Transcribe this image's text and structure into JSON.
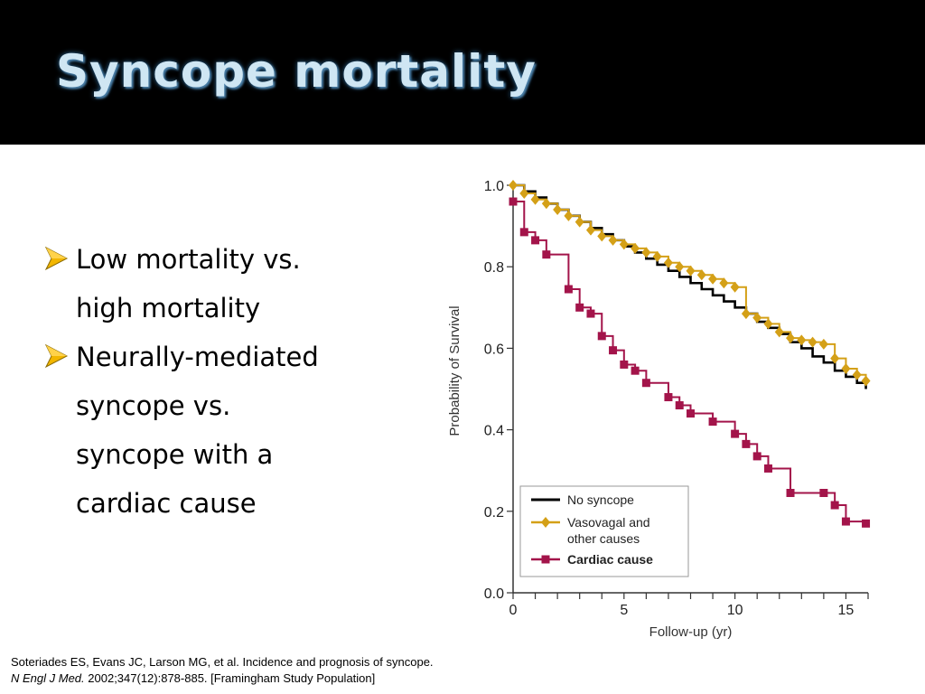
{
  "slide": {
    "title": "Syncope mortality",
    "bullets": [
      "Low mortality vs.\nhigh mortality",
      "Neurally-mediated\nsyncope vs.\nsyncope with a\ncardiac cause"
    ],
    "citation_line1": "Soteriades ES, Evans JC, Larson MG, et al. Incidence and prognosis of syncope.",
    "citation_journal": "N Engl J Med.",
    "citation_line2_rest": " 2002;347(12):878-885. [Framingham Study Population]"
  },
  "colors": {
    "title_bar": "#000000",
    "title_text": "#cfe6f3",
    "bullet_arrow": "#f2b600",
    "no_syncope": "#000000",
    "vasovagal": "#d4a017",
    "cardiac": "#a3144a"
  },
  "chart_data": {
    "type": "line",
    "step": true,
    "xlabel": "Follow-up (yr)",
    "ylabel": "Probability of Survival",
    "xlim": [
      0,
      16
    ],
    "ylim": [
      0,
      1.0
    ],
    "xticks": [
      0,
      5,
      10,
      15
    ],
    "yticks": [
      "0.0",
      "0.2",
      "0.4",
      "0.6",
      "0.8",
      "1.0"
    ],
    "grid": false,
    "legend_position": "bottom-left",
    "series": [
      {
        "name": "No syncope",
        "color": "#000000",
        "marker": "none",
        "x": [
          0,
          0.5,
          1,
          1.5,
          2,
          2.5,
          3,
          3.5,
          4,
          4.5,
          5,
          5.5,
          6,
          6.5,
          7,
          7.5,
          8,
          8.5,
          9,
          9.5,
          10,
          10.5,
          11,
          11.5,
          12,
          12.5,
          13,
          13.5,
          14,
          14.5,
          15,
          15.5,
          15.9
        ],
        "y": [
          1.0,
          0.985,
          0.97,
          0.955,
          0.94,
          0.925,
          0.91,
          0.895,
          0.88,
          0.865,
          0.85,
          0.835,
          0.82,
          0.805,
          0.79,
          0.775,
          0.76,
          0.745,
          0.73,
          0.715,
          0.7,
          0.685,
          0.665,
          0.65,
          0.635,
          0.615,
          0.6,
          0.58,
          0.565,
          0.545,
          0.53,
          0.515,
          0.5
        ]
      },
      {
        "name": "Vasovagal and other causes",
        "color": "#d4a017",
        "marker": "diamond",
        "x": [
          0,
          0.5,
          1,
          1.5,
          2,
          2.5,
          3,
          3.5,
          4,
          4.5,
          5,
          5.5,
          6,
          6.5,
          7,
          7.5,
          8,
          8.5,
          9,
          9.5,
          10,
          10.5,
          11,
          11.5,
          12,
          12.5,
          13,
          13.5,
          14,
          14.5,
          15,
          15.5,
          15.9
        ],
        "y": [
          1.0,
          0.98,
          0.965,
          0.955,
          0.94,
          0.925,
          0.91,
          0.89,
          0.875,
          0.865,
          0.855,
          0.845,
          0.835,
          0.825,
          0.81,
          0.8,
          0.79,
          0.78,
          0.77,
          0.76,
          0.75,
          0.685,
          0.675,
          0.66,
          0.64,
          0.625,
          0.62,
          0.615,
          0.61,
          0.575,
          0.55,
          0.535,
          0.52
        ]
      },
      {
        "name": "Cardiac cause",
        "color": "#a3144a",
        "marker": "square",
        "x": [
          0,
          0.5,
          1,
          1.5,
          2.5,
          3,
          3.5,
          4,
          4.5,
          5,
          5.5,
          6,
          7,
          7.5,
          8,
          9,
          10,
          10.5,
          11,
          11.5,
          12.5,
          14,
          14.5,
          15,
          15.9
        ],
        "y": [
          0.96,
          0.885,
          0.865,
          0.83,
          0.745,
          0.7,
          0.685,
          0.63,
          0.595,
          0.56,
          0.545,
          0.515,
          0.48,
          0.46,
          0.44,
          0.42,
          0.39,
          0.365,
          0.335,
          0.305,
          0.245,
          0.245,
          0.215,
          0.175,
          0.17
        ]
      }
    ]
  }
}
